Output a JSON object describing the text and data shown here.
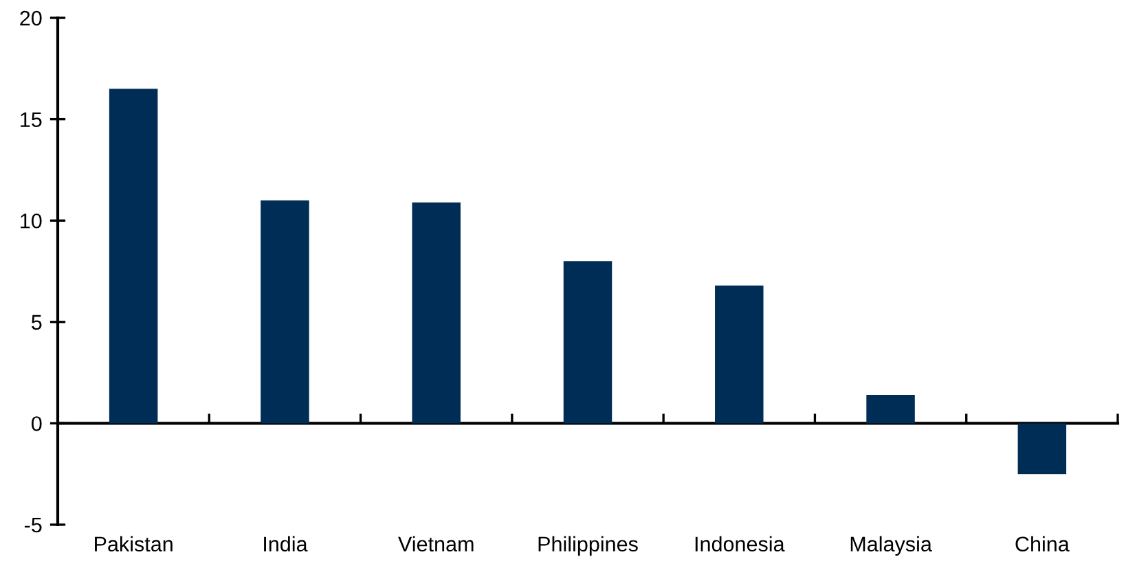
{
  "chart_data": {
    "type": "bar",
    "categories": [
      "Pakistan",
      "India",
      "Vietnam",
      "Philippines",
      "Indonesia",
      "Malaysia",
      "China"
    ],
    "values": [
      16.5,
      11.0,
      10.9,
      8.0,
      6.8,
      1.4,
      -2.5
    ],
    "color": "#002d56",
    "ylim": [
      -5,
      20
    ],
    "yticks": [
      -5,
      0,
      5,
      10,
      15,
      20
    ],
    "legend": false
  }
}
